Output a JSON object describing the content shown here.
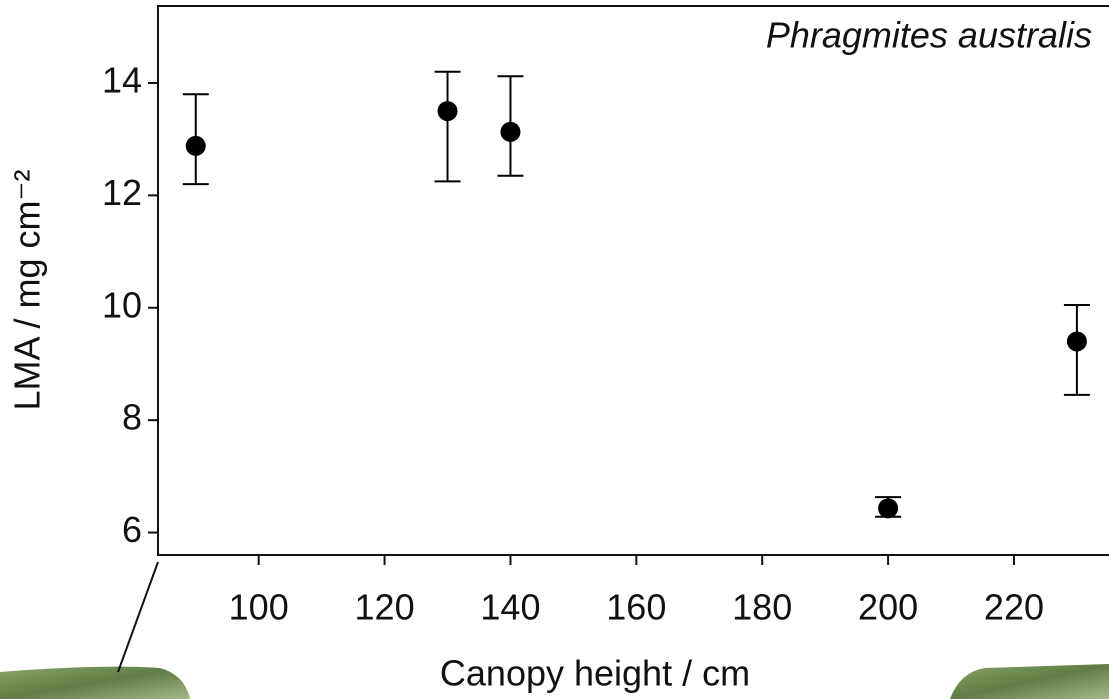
{
  "chart_data": {
    "type": "scatter",
    "title": "Phragmites australis",
    "x_label": "Canopy height / cm",
    "y_label": "LMA / mg cm⁻²",
    "x": [
      90,
      130,
      140,
      200,
      230
    ],
    "values": [
      12.88,
      13.5,
      13.13,
      6.43,
      9.4
    ],
    "y_low": [
      12.2,
      12.25,
      12.35,
      6.28,
      8.45
    ],
    "y_high": [
      13.8,
      14.2,
      14.12,
      6.63,
      10.05
    ],
    "color": "#000000",
    "xlim": [
      84,
      235.1
    ],
    "xticks": [
      100,
      120,
      140,
      160,
      180,
      200,
      220
    ],
    "ylim": [
      5.6,
      15.37
    ],
    "yticks": [
      6,
      8,
      10,
      12,
      14
    ]
  }
}
